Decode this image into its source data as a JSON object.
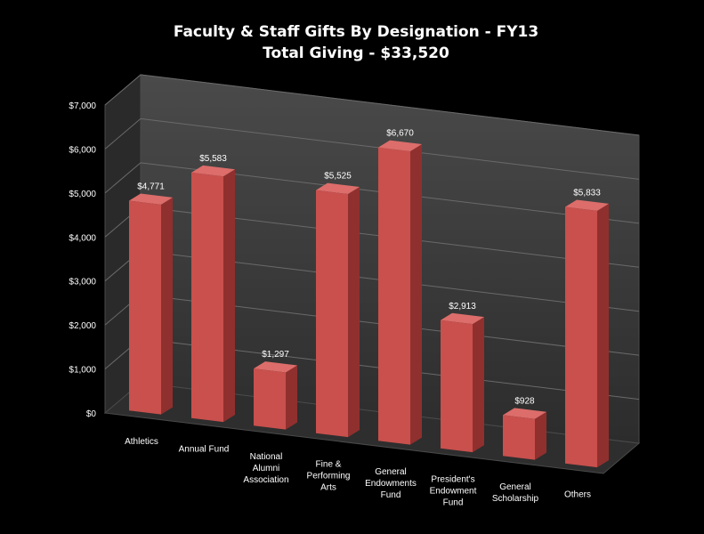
{
  "chart_data": {
    "type": "bar",
    "title": "Faculty & Staff Gifts By Designation - FY13",
    "subtitle": "Total Giving - $33,520",
    "categories": [
      [
        "Athletics"
      ],
      [
        "Annual Fund"
      ],
      [
        "National",
        "Alumni",
        "Association"
      ],
      [
        "Fine &",
        "Performing",
        "Arts"
      ],
      [
        "General",
        "Endowments",
        "Fund"
      ],
      [
        "President's",
        "Endowment",
        "Fund"
      ],
      [
        "General",
        "Scholarship"
      ],
      [
        "Others"
      ]
    ],
    "values": [
      4771,
      5583,
      1297,
      5525,
      6670,
      2913,
      928,
      5833
    ],
    "data_labels": [
      "$4,771",
      "$5,583",
      "$1,297",
      "$5,525",
      "$6,670",
      "$2,913",
      "$928",
      "$5,833"
    ],
    "yticks": [
      "$0",
      "$1,000",
      "$2,000",
      "$3,000",
      "$4,000",
      "$5,000",
      "$6,000",
      "$7,000"
    ],
    "ylim": [
      0,
      7000
    ],
    "grid": true,
    "legend": "none",
    "style": "3d-column",
    "colors": {
      "bar_front": "#c9504d",
      "bar_side": "#8f302e",
      "bar_top": "#dc6d6a",
      "wall": "#3a3a3a",
      "floor": "#2e2e2e",
      "background": "#000000",
      "text": "#ffffff"
    }
  }
}
